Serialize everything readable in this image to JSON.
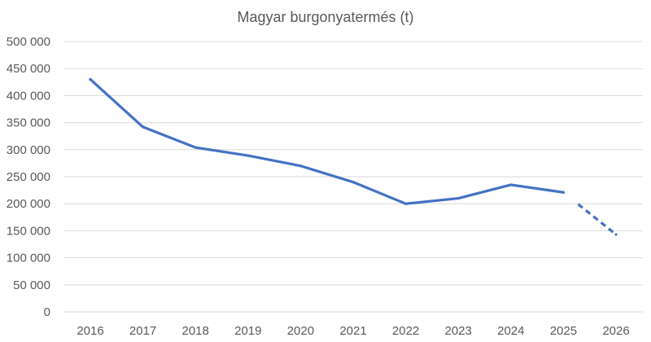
{
  "chart_data": {
    "type": "line",
    "title": "Magyar burgonyatermés (t)",
    "xlabel": "",
    "ylabel": "",
    "categories": [
      "2016",
      "2017",
      "2018",
      "2019",
      "2020",
      "2021",
      "2022",
      "2023",
      "2024",
      "2025",
      "2026"
    ],
    "y_tick_labels": [
      "0",
      "50 000",
      "100 000",
      "150 000",
      "200 000",
      "250 000",
      "300 000",
      "350 000",
      "400 000",
      "450 000",
      "500 000"
    ],
    "y_ticks": [
      0,
      50000,
      100000,
      150000,
      200000,
      250000,
      300000,
      350000,
      400000,
      450000,
      500000
    ],
    "ylim": [
      0,
      500000
    ],
    "grid": true,
    "legend": "none",
    "series": [
      {
        "values": [
          430000,
          342000,
          304000,
          289000,
          270000,
          240000,
          200000,
          210000,
          235000,
          221000,
          143000
        ],
        "color": "#4472c4",
        "forecast_from_index": 9,
        "forecast_segment_start_fraction": 0.28
      }
    ]
  }
}
